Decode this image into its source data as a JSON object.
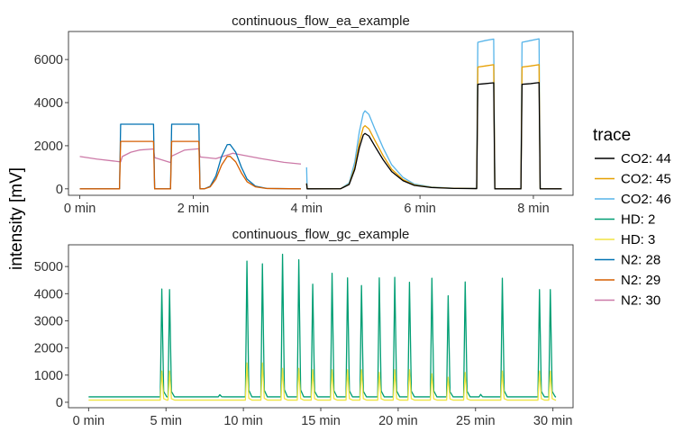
{
  "chart_data": [
    {
      "type": "line",
      "title": "continuous_flow_ea_example",
      "xlabel": "",
      "ylabel": "intensity [mV]",
      "x_unit": "min",
      "xlim": [
        -0.2,
        8.7
      ],
      "ylim": [
        -300,
        7300
      ],
      "x_ticks": [
        0,
        2,
        4,
        6,
        8
      ],
      "x_tick_labels": [
        "0 min",
        "2 min",
        "4 min",
        "6 min",
        "8 min"
      ],
      "y_ticks": [
        0,
        2000,
        4000,
        6000
      ],
      "y_tick_labels": [
        "0",
        "2000",
        "4000",
        "6000"
      ],
      "grid": false,
      "series": [
        {
          "name": "CO2: 44",
          "color": "#000000",
          "points": [
            [
              4.0,
              250
            ],
            [
              4.01,
              0
            ],
            [
              4.6,
              5
            ],
            [
              4.75,
              200
            ],
            [
              4.85,
              900
            ],
            [
              4.93,
              1900
            ],
            [
              5.0,
              2500
            ],
            [
              5.03,
              2570
            ],
            [
              5.1,
              2450
            ],
            [
              5.2,
              2000
            ],
            [
              5.35,
              1350
            ],
            [
              5.5,
              800
            ],
            [
              5.7,
              380
            ],
            [
              5.9,
              160
            ],
            [
              6.2,
              60
            ],
            [
              6.6,
              20
            ],
            [
              7.0,
              10
            ],
            [
              7.02,
              4850
            ],
            [
              7.15,
              4880
            ],
            [
              7.3,
              4920
            ],
            [
              7.32,
              0
            ],
            [
              7.78,
              0
            ],
            [
              7.8,
              4850
            ],
            [
              7.95,
              4880
            ],
            [
              8.1,
              4930
            ],
            [
              8.12,
              0
            ],
            [
              8.5,
              0
            ]
          ]
        },
        {
          "name": "CO2: 45",
          "color": "#e69f00",
          "points": [
            [
              4.0,
              250
            ],
            [
              4.01,
              0
            ],
            [
              4.6,
              5
            ],
            [
              4.75,
              220
            ],
            [
              4.85,
              1000
            ],
            [
              4.93,
              2150
            ],
            [
              5.0,
              2850
            ],
            [
              5.03,
              2930
            ],
            [
              5.1,
              2780
            ],
            [
              5.2,
              2270
            ],
            [
              5.35,
              1540
            ],
            [
              5.5,
              910
            ],
            [
              5.7,
              430
            ],
            [
              5.9,
              180
            ],
            [
              6.2,
              70
            ],
            [
              6.6,
              25
            ],
            [
              7.0,
              12
            ],
            [
              7.02,
              5650
            ],
            [
              7.15,
              5700
            ],
            [
              7.3,
              5760
            ],
            [
              7.32,
              0
            ],
            [
              7.78,
              0
            ],
            [
              7.8,
              5650
            ],
            [
              7.95,
              5700
            ],
            [
              8.1,
              5760
            ],
            [
              8.12,
              0
            ],
            [
              8.5,
              0
            ]
          ]
        },
        {
          "name": "CO2: 46",
          "color": "#56b4e9",
          "points": [
            [
              4.0,
              1000
            ],
            [
              4.01,
              0
            ],
            [
              4.6,
              5
            ],
            [
              4.75,
              270
            ],
            [
              4.85,
              1250
            ],
            [
              4.93,
              2650
            ],
            [
              5.0,
              3500
            ],
            [
              5.03,
              3620
            ],
            [
              5.1,
              3450
            ],
            [
              5.2,
              2800
            ],
            [
              5.35,
              1900
            ],
            [
              5.5,
              1120
            ],
            [
              5.7,
              530
            ],
            [
              5.9,
              220
            ],
            [
              6.2,
              85
            ],
            [
              6.6,
              30
            ],
            [
              7.0,
              15
            ],
            [
              7.02,
              6800
            ],
            [
              7.15,
              6880
            ],
            [
              7.3,
              6950
            ],
            [
              7.32,
              0
            ],
            [
              7.78,
              0
            ],
            [
              7.8,
              6800
            ],
            [
              7.95,
              6880
            ],
            [
              8.1,
              6960
            ],
            [
              8.12,
              0
            ],
            [
              8.5,
              0
            ]
          ]
        },
        {
          "name": "HD: 2",
          "color": "#009e73",
          "points": []
        },
        {
          "name": "HD: 3",
          "color": "#f0e442",
          "points": []
        },
        {
          "name": "N2: 28",
          "color": "#0072b2",
          "points": [
            [
              0,
              0
            ],
            [
              0.7,
              0
            ],
            [
              0.72,
              3000
            ],
            [
              1.3,
              3000
            ],
            [
              1.32,
              0
            ],
            [
              1.6,
              0
            ],
            [
              1.62,
              3000
            ],
            [
              2.1,
              3000
            ],
            [
              2.12,
              0
            ],
            [
              2.2,
              5
            ],
            [
              2.3,
              120
            ],
            [
              2.4,
              600
            ],
            [
              2.5,
              1500
            ],
            [
              2.6,
              2050
            ],
            [
              2.65,
              2060
            ],
            [
              2.75,
              1700
            ],
            [
              2.85,
              1000
            ],
            [
              2.95,
              450
            ],
            [
              3.1,
              120
            ],
            [
              3.3,
              20
            ],
            [
              3.9,
              0
            ]
          ]
        },
        {
          "name": "N2: 29",
          "color": "#d55e00",
          "points": [
            [
              0,
              0
            ],
            [
              0.7,
              0
            ],
            [
              0.72,
              2200
            ],
            [
              1.3,
              2200
            ],
            [
              1.32,
              0
            ],
            [
              1.6,
              0
            ],
            [
              1.62,
              2200
            ],
            [
              2.1,
              2200
            ],
            [
              2.12,
              0
            ],
            [
              2.2,
              5
            ],
            [
              2.3,
              90
            ],
            [
              2.4,
              450
            ],
            [
              2.5,
              1100
            ],
            [
              2.6,
              1500
            ],
            [
              2.65,
              1510
            ],
            [
              2.75,
              1250
            ],
            [
              2.85,
              740
            ],
            [
              2.95,
              330
            ],
            [
              3.1,
              90
            ],
            [
              3.3,
              15
            ],
            [
              3.9,
              0
            ]
          ]
        },
        {
          "name": "N2: 30",
          "color": "#cc79a7",
          "points": [
            [
              0,
              1500
            ],
            [
              0.3,
              1380
            ],
            [
              0.6,
              1290
            ],
            [
              0.72,
              1250
            ],
            [
              0.75,
              1500
            ],
            [
              0.9,
              1700
            ],
            [
              1.05,
              1800
            ],
            [
              1.3,
              1850
            ],
            [
              1.32,
              1450
            ],
            [
              1.6,
              1220
            ],
            [
              1.62,
              1520
            ],
            [
              1.85,
              1800
            ],
            [
              2.1,
              1860
            ],
            [
              2.12,
              1480
            ],
            [
              2.4,
              1400
            ],
            [
              2.7,
              1650
            ],
            [
              2.8,
              1600
            ],
            [
              3.2,
              1400
            ],
            [
              3.6,
              1230
            ],
            [
              3.9,
              1150
            ]
          ]
        }
      ]
    },
    {
      "type": "line",
      "title": "continuous_flow_gc_example",
      "xlabel": "",
      "ylabel": "intensity [mV]",
      "x_unit": "min",
      "xlim": [
        -1.3,
        31.3
      ],
      "ylim": [
        -200,
        5800
      ],
      "x_ticks": [
        0,
        5,
        10,
        15,
        20,
        25,
        30
      ],
      "x_tick_labels": [
        "0 min",
        "5 min",
        "10 min",
        "15 min",
        "20 min",
        "25 min",
        "30 min"
      ],
      "y_ticks": [
        0,
        1000,
        2000,
        3000,
        4000,
        5000
      ],
      "y_tick_labels": [
        "0",
        "1000",
        "2000",
        "3000",
        "4000",
        "5000"
      ],
      "grid": false,
      "hd2_baseline": 200,
      "hd3_baseline": 80,
      "peaks": [
        {
          "time": 4.75,
          "hd2": 4170,
          "hd3": 1150
        },
        {
          "time": 5.25,
          "hd2": 4150,
          "hd3": 1150
        },
        {
          "time": 10.25,
          "hd2": 5200,
          "hd3": 1450
        },
        {
          "time": 11.25,
          "hd2": 5100,
          "hd3": 1450
        },
        {
          "time": 12.55,
          "hd2": 5450,
          "hd3": 1250
        },
        {
          "time": 13.6,
          "hd2": 5250,
          "hd3": 1250
        },
        {
          "time": 14.5,
          "hd2": 4350,
          "hd3": 1200
        },
        {
          "time": 15.75,
          "hd2": 4750,
          "hd3": 1200
        },
        {
          "time": 16.75,
          "hd2": 4580,
          "hd3": 1200
        },
        {
          "time": 17.65,
          "hd2": 4300,
          "hd3": 1200
        },
        {
          "time": 18.8,
          "hd2": 4580,
          "hd3": 1100
        },
        {
          "time": 19.8,
          "hd2": 4600,
          "hd3": 1200
        },
        {
          "time": 20.75,
          "hd2": 4420,
          "hd3": 1200
        },
        {
          "time": 22.2,
          "hd2": 4570,
          "hd3": 1050
        },
        {
          "time": 23.25,
          "hd2": 3920,
          "hd3": 920
        },
        {
          "time": 24.35,
          "hd2": 4430,
          "hd3": 1100
        },
        {
          "time": 26.75,
          "hd2": 4570,
          "hd3": 1150
        },
        {
          "time": 29.15,
          "hd2": 4150,
          "hd3": 1150
        },
        {
          "time": 29.85,
          "hd2": 4150,
          "hd3": 1150
        }
      ],
      "small_peaks": [
        {
          "time": 8.5,
          "hd2": 280
        },
        {
          "time": 25.35,
          "hd2": 290
        }
      ],
      "x_end": 30.2
    }
  ],
  "legend": {
    "title": "trace",
    "entries": [
      {
        "label": "CO2: 44",
        "color": "#000000"
      },
      {
        "label": "CO2: 45",
        "color": "#e69f00"
      },
      {
        "label": "CO2: 46",
        "color": "#56b4e9"
      },
      {
        "label": "HD: 2",
        "color": "#009e73"
      },
      {
        "label": "HD: 3",
        "color": "#f0e442"
      },
      {
        "label": "N2: 28",
        "color": "#0072b2"
      },
      {
        "label": "N2: 29",
        "color": "#d55e00"
      },
      {
        "label": "N2: 30",
        "color": "#cc79a7"
      }
    ]
  },
  "ylabel": "intensity [mV]"
}
